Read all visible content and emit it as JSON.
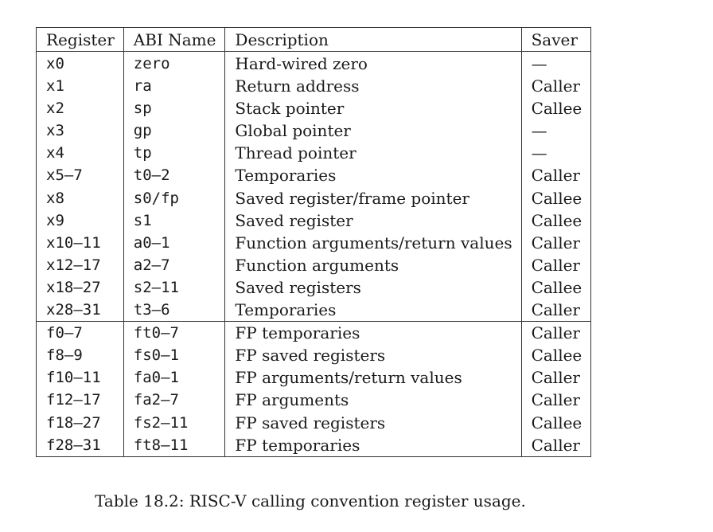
{
  "table": {
    "headers": [
      "Register",
      "ABI Name",
      "Description",
      "Saver"
    ],
    "int_rows": [
      [
        "x0",
        "zero",
        "Hard-wired zero",
        "—"
      ],
      [
        "x1",
        "ra",
        "Return address",
        "Caller"
      ],
      [
        "x2",
        "sp",
        "Stack pointer",
        "Callee"
      ],
      [
        "x3",
        "gp",
        "Global pointer",
        "—"
      ],
      [
        "x4",
        "tp",
        "Thread pointer",
        "—"
      ],
      [
        "x5–7",
        "t0–2",
        "Temporaries",
        "Caller"
      ],
      [
        "x8",
        "s0/fp",
        "Saved register/frame pointer",
        "Callee"
      ],
      [
        "x9",
        "s1",
        "Saved register",
        "Callee"
      ],
      [
        "x10–11",
        "a0–1",
        "Function arguments/return values",
        "Caller"
      ],
      [
        "x12–17",
        "a2–7",
        "Function arguments",
        "Caller"
      ],
      [
        "x18–27",
        "s2–11",
        "Saved registers",
        "Callee"
      ],
      [
        "x28–31",
        "t3–6",
        "Temporaries",
        "Caller"
      ]
    ],
    "fp_rows": [
      [
        "f0–7",
        "ft0–7",
        "FP temporaries",
        "Caller"
      ],
      [
        "f8–9",
        "fs0–1",
        "FP saved registers",
        "Callee"
      ],
      [
        "f10–11",
        "fa0–1",
        "FP arguments/return values",
        "Caller"
      ],
      [
        "f12–17",
        "fa2–7",
        "FP arguments",
        "Caller"
      ],
      [
        "f18–27",
        "fs2–11",
        "FP saved registers",
        "Callee"
      ],
      [
        "f28–31",
        "ft8–11",
        "FP temporaries",
        "Caller"
      ]
    ]
  },
  "caption": "Table 18.2: RISC-V calling convention register usage."
}
